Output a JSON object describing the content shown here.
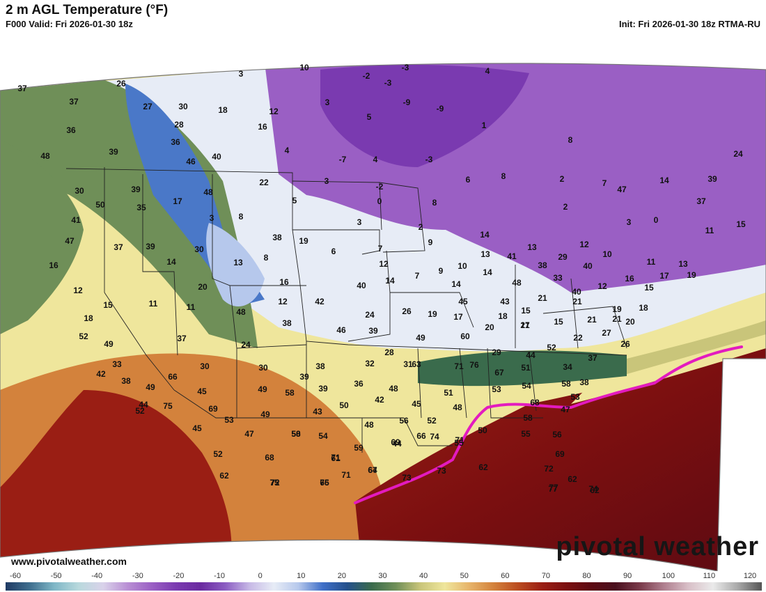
{
  "header": {
    "title": "2 m AGL Temperature (°F)",
    "valid": "F000 Valid: Fri 2026-01-30 18z",
    "init": "Init: Fri 2026-01-30 18z RTMA-RU"
  },
  "footer": {
    "site": "www.pivotalweather.com",
    "brand": "pivotal weather"
  },
  "colorbar": {
    "ticks": [
      "-60",
      "-50",
      "-40",
      "-30",
      "-20",
      "-10",
      "0",
      "10",
      "20",
      "30",
      "40",
      "50",
      "60",
      "70",
      "80",
      "90",
      "100",
      "110",
      "120"
    ],
    "colors": [
      "#1f3a63",
      "#3f6f8f",
      "#7fb7c7",
      "#b9d9dd",
      "#d9d2ea",
      "#b98fd4",
      "#9a5fc4",
      "#7a3ab0",
      "#6a2aa0",
      "#8b5cc2",
      "#c7b9e6",
      "#e7ecf6",
      "#b6c8ec",
      "#3f6fc8",
      "#24508c",
      "#3a6b4c",
      "#6f8f58",
      "#c9c57a",
      "#efe69c",
      "#e7b46a",
      "#d3823c",
      "#bb4c20",
      "#9a1e14",
      "#7b0f10",
      "#5c0a12",
      "#4a0f1e",
      "#7a3a4a",
      "#b08090",
      "#d9c0c8",
      "#eaeaea",
      "#aaaaaa",
      "#555555"
    ]
  },
  "map": {
    "front_color": "#e31bbf",
    "temperature_labels": [
      "37",
      "26",
      "37",
      "27",
      "30",
      "18",
      "12",
      "10",
      "3",
      "-2",
      "-3",
      "-3",
      "4",
      "36",
      "28",
      "16",
      "3",
      "-9",
      "-9",
      "39",
      "36",
      "4",
      "5",
      "1",
      "48",
      "46",
      "40",
      "-7",
      "4",
      "-3",
      "8",
      "24",
      "30",
      "39",
      "48",
      "22",
      "3",
      "-2",
      "6",
      "8",
      "2",
      "7",
      "14",
      "39",
      "50",
      "35",
      "17",
      "5",
      "0",
      "8",
      "2",
      "47",
      "37",
      "41",
      "3",
      "8",
      "3",
      "2",
      "3",
      "0",
      "11",
      "15",
      "47",
      "37",
      "39",
      "30",
      "38",
      "19",
      "6",
      "7",
      "9",
      "14",
      "13",
      "12",
      "16",
      "14",
      "13",
      "8",
      "12",
      "9",
      "10",
      "13",
      "41",
      "38",
      "29",
      "40",
      "10",
      "11",
      "13",
      "12",
      "20",
      "16",
      "14",
      "7",
      "14",
      "14",
      "48",
      "33",
      "40",
      "12",
      "16",
      "15",
      "17",
      "19",
      "15",
      "11",
      "11",
      "12",
      "42",
      "40",
      "45",
      "43",
      "15",
      "21",
      "21",
      "19",
      "18",
      "18",
      "48",
      "38",
      "46",
      "24",
      "26",
      "19",
      "17",
      "18",
      "21",
      "15",
      "21",
      "21",
      "20",
      "52",
      "39",
      "49",
      "60",
      "20",
      "17",
      "22",
      "27",
      "26",
      "49",
      "37",
      "24",
      "28",
      "31",
      "29",
      "44",
      "52",
      "37",
      "33",
      "30",
      "30",
      "38",
      "32",
      "63",
      "71",
      "76",
      "67",
      "51",
      "34",
      "38",
      "42",
      "38",
      "49",
      "66",
      "45",
      "49",
      "39",
      "39",
      "36",
      "48",
      "51",
      "44",
      "75",
      "69",
      "58",
      "43",
      "50",
      "42",
      "45",
      "48",
      "53",
      "54",
      "58",
      "52",
      "53",
      "49",
      "50",
      "48",
      "56",
      "52",
      "68",
      "53",
      "45",
      "47",
      "54",
      "59",
      "44",
      "66",
      "71",
      "50",
      "58",
      "47",
      "52",
      "58",
      "61",
      "67",
      "69",
      "74",
      "55",
      "55",
      "56",
      "68",
      "71",
      "64",
      "73",
      "73",
      "62",
      "72",
      "69",
      "62",
      "75",
      "65",
      "71",
      "77",
      "62",
      "62",
      "72",
      "76",
      "77",
      "74"
    ]
  }
}
